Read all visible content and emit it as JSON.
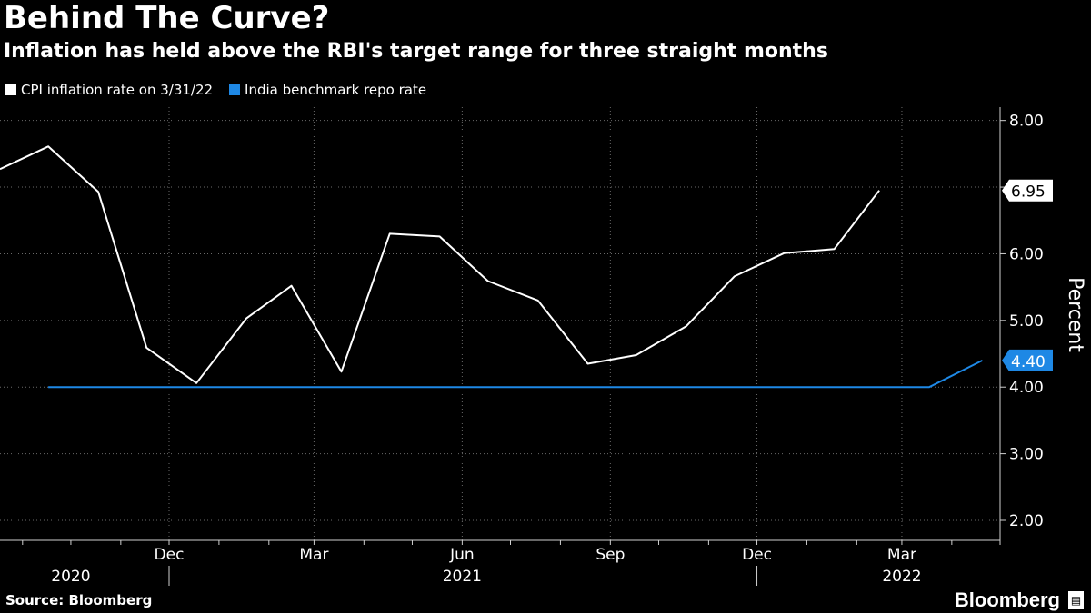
{
  "header": {
    "title": "Behind The Curve?",
    "subtitle": "Inflation has held above the RBI's target range for three straight months"
  },
  "footer": {
    "source": "Source: Bloomberg",
    "brand": "Bloomberg"
  },
  "colors": {
    "background": "#000000",
    "cpi": "#ffffff",
    "repo": "#1e88e5",
    "grid": "#6a6a6a",
    "axis": "#cfcfcf"
  },
  "chart_data": {
    "type": "line",
    "ylabel": "Percent",
    "ylim": [
      1.7,
      8.2
    ],
    "yticks": [
      2,
      3,
      4,
      5,
      6,
      7,
      8
    ],
    "ytick_labels": [
      "2.00",
      "3.00",
      "4.00",
      "5.00",
      "6.00",
      "",
      "8.00"
    ],
    "xlim": [
      "2020-09-01",
      "2022-05-15"
    ],
    "x_month_ticks": [
      "2020-09-15",
      "2020-10-15",
      "2020-11-15",
      "2020-12-15",
      "2021-01-15",
      "2021-02-15",
      "2021-03-15",
      "2021-04-15",
      "2021-05-15",
      "2021-06-15",
      "2021-07-15",
      "2021-08-15",
      "2021-09-15",
      "2021-10-15",
      "2021-11-15",
      "2021-12-15",
      "2022-01-15",
      "2022-02-15",
      "2022-03-15",
      "2022-04-15",
      "2022-05-15"
    ],
    "x_labels": [
      {
        "date": "2020-12-15",
        "text": "Dec"
      },
      {
        "date": "2021-03-15",
        "text": "Mar"
      },
      {
        "date": "2021-06-15",
        "text": "Jun"
      },
      {
        "date": "2021-09-15",
        "text": "Sep"
      },
      {
        "date": "2021-12-15",
        "text": "Dec"
      },
      {
        "date": "2022-03-15",
        "text": "Mar"
      }
    ],
    "year_labels": [
      {
        "date": "2020-10-15",
        "text": "2020"
      },
      {
        "date": "2021-06-15",
        "text": "2021"
      },
      {
        "date": "2022-03-15",
        "text": "2022"
      }
    ],
    "year_separators": [
      "2020-12-15",
      "2021-12-15"
    ],
    "series": [
      {
        "name": "CPI inflation rate on 3/31/22",
        "color": "#ffffff",
        "end_label": "6.95",
        "points": [
          [
            "2020-09-01",
            7.27
          ],
          [
            "2020-10-01",
            7.61
          ],
          [
            "2020-11-01",
            6.93
          ],
          [
            "2020-12-01",
            4.59
          ],
          [
            "2021-01-01",
            4.06
          ],
          [
            "2021-02-01",
            5.03
          ],
          [
            "2021-03-01",
            5.52
          ],
          [
            "2021-04-01",
            4.23
          ],
          [
            "2021-05-01",
            6.3
          ],
          [
            "2021-06-01",
            6.26
          ],
          [
            "2021-07-01",
            5.59
          ],
          [
            "2021-08-01",
            5.3
          ],
          [
            "2021-09-01",
            4.35
          ],
          [
            "2021-10-01",
            4.48
          ],
          [
            "2021-11-01",
            4.91
          ],
          [
            "2021-12-01",
            5.66
          ],
          [
            "2022-01-01",
            6.01
          ],
          [
            "2022-02-01",
            6.07
          ],
          [
            "2022-03-01",
            6.95
          ]
        ]
      },
      {
        "name": "India benchmark repo rate",
        "color": "#1e88e5",
        "end_label": "4.40",
        "points": [
          [
            "2020-10-01",
            4.0
          ],
          [
            "2022-04-01",
            4.0
          ],
          [
            "2022-05-04",
            4.4
          ]
        ]
      }
    ]
  }
}
